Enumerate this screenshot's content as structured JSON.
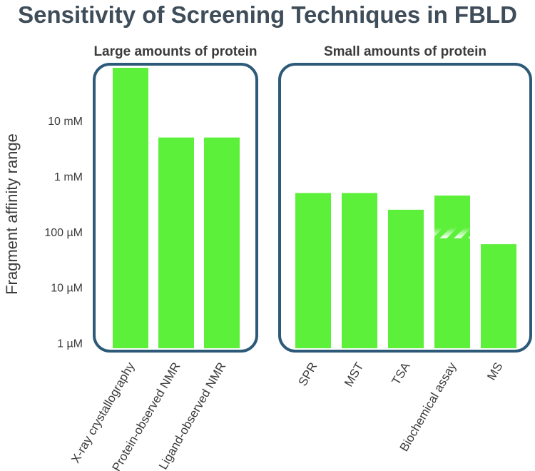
{
  "chart_data": {
    "type": "bar",
    "title": "Sensitivity of Screening Techniques in FBLD",
    "ylabel": "Fragment affinity range",
    "yscale": "log",
    "y_unit": "M",
    "ylim": [
      8e-07,
      0.09
    ],
    "y_ticks": [
      {
        "value": 1e-06,
        "label": "1 µM"
      },
      {
        "value": 1e-05,
        "label": "10 µM"
      },
      {
        "value": 0.0001,
        "label": "100 µM"
      },
      {
        "value": 0.001,
        "label": "1 mM"
      },
      {
        "value": 0.01,
        "label": "10 mM"
      }
    ],
    "groups": [
      {
        "label": "Large amounts of protein",
        "bars": [
          {
            "category": "X-ray crystallography",
            "value": 0.09,
            "striped": false
          },
          {
            "category": "Protein-observed NMR",
            "value": 0.005,
            "striped": false
          },
          {
            "category": "Ligand-observed NMR",
            "value": 0.005,
            "striped": false
          }
        ]
      },
      {
        "label": "Small amounts of protein",
        "bars": [
          {
            "category": "SPR",
            "value": 0.0005,
            "striped": false
          },
          {
            "category": "MST",
            "value": 0.0005,
            "striped": false
          },
          {
            "category": "TSA",
            "value": 0.00025,
            "striped": false
          },
          {
            "category": "Biochemical assay",
            "value": 0.00045,
            "striped": true
          },
          {
            "category": "MS",
            "value": 6e-05,
            "striped": false
          }
        ]
      }
    ],
    "colors": {
      "bar": "#5cf03a",
      "panel_border": "#2c5a78",
      "title": "#3e4d59",
      "text": "#3b3b3b"
    }
  }
}
